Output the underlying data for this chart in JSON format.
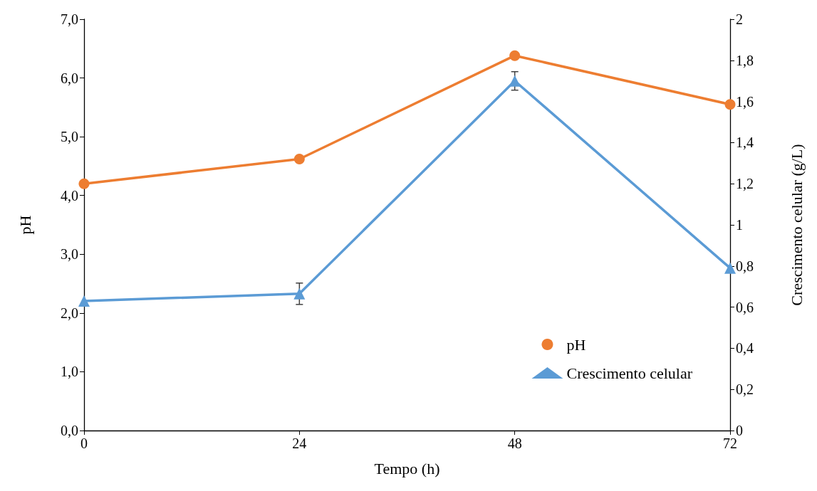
{
  "chart_data": {
    "type": "line",
    "xlabel": "Tempo (h)",
    "ylabel": "pH",
    "y2label": "Crescimento celular (g/L)",
    "x": [
      0,
      24,
      48,
      72
    ],
    "xlim": [
      0,
      72
    ],
    "xticks": [
      0,
      24,
      48,
      72
    ],
    "ylim": [
      0,
      7
    ],
    "yticks": [
      {
        "value": 0,
        "label": "0,0"
      },
      {
        "value": 1,
        "label": "1,0"
      },
      {
        "value": 2,
        "label": "2,0"
      },
      {
        "value": 3,
        "label": "3,0"
      },
      {
        "value": 4,
        "label": "4,0"
      },
      {
        "value": 5,
        "label": "5,0"
      },
      {
        "value": 6,
        "label": "6,0"
      },
      {
        "value": 7,
        "label": "7,0"
      }
    ],
    "y2lim": [
      0,
      2
    ],
    "y2ticks": [
      0,
      {
        "value": 0.2,
        "label": "0,2"
      },
      {
        "value": 0.4,
        "label": "0,4"
      },
      {
        "value": 0.6,
        "label": "0,6"
      },
      {
        "value": 0.8,
        "label": "0,8"
      },
      1,
      {
        "value": 1.2,
        "label": "1,2"
      },
      {
        "value": 1.4,
        "label": "1,4"
      },
      {
        "value": 1.6,
        "label": "1,6"
      },
      {
        "value": 1.8,
        "label": "1,8"
      },
      2
    ],
    "series": [
      {
        "name": "pH",
        "color": "#ed7d31",
        "marker": "circle",
        "values": [
          4.2,
          4.62,
          6.38,
          5.55
        ]
      },
      {
        "name": "Crescimento celular",
        "color": "#5b9bd5",
        "marker": "triangle",
        "axis": "y2",
        "values": [
          0.63,
          0.665,
          1.7,
          0.79
        ],
        "errors": [
          null,
          0.052,
          0.045,
          null
        ]
      }
    ],
    "legend": "bottom right",
    "grid": false
  }
}
